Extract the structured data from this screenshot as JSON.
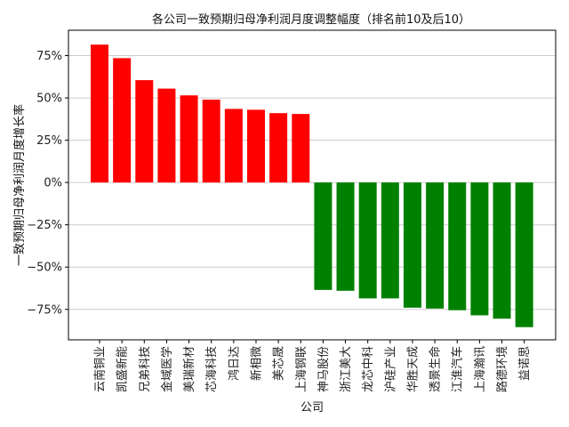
{
  "chart_data": {
    "type": "bar",
    "title": "各公司一致预期归母净利润月度调整幅度（排名前10及后10）",
    "xlabel": "公司",
    "ylabel": "一致预期归母净利润月度增长率",
    "ylim": [
      -93,
      90
    ],
    "yticks": [
      75,
      50,
      25,
      0,
      -25,
      -50,
      -75
    ],
    "ytick_labels": [
      "75%",
      "50%",
      "25%",
      "0%",
      "−25%",
      "−50%",
      "−75%"
    ],
    "grid": "horizontal",
    "colors": {
      "positive": "#ff0000",
      "negative": "#008000",
      "grid": "#cccccc",
      "axis": "#000000"
    },
    "categories": [
      "云南铜业",
      "凯盛新能",
      "兄弟科技",
      "金域医学",
      "美瑞新材",
      "芯海科技",
      "鸿日达",
      "新相微",
      "美芯晟",
      "上海钢联",
      "神马股份",
      "浙江美大",
      "龙芯中科",
      "沪硅产业",
      "华胜天成",
      "透景生命",
      "江淮汽车",
      "上海瀚讯",
      "路德环境",
      "益诺思"
    ],
    "values": [
      81.5,
      73.5,
      60.5,
      55.5,
      51.5,
      49.0,
      43.5,
      43.0,
      41.0,
      40.5,
      -63.5,
      -64.0,
      -68.5,
      -68.5,
      -74.0,
      -74.5,
      -75.5,
      -78.5,
      -80.5,
      -85.5
    ]
  }
}
